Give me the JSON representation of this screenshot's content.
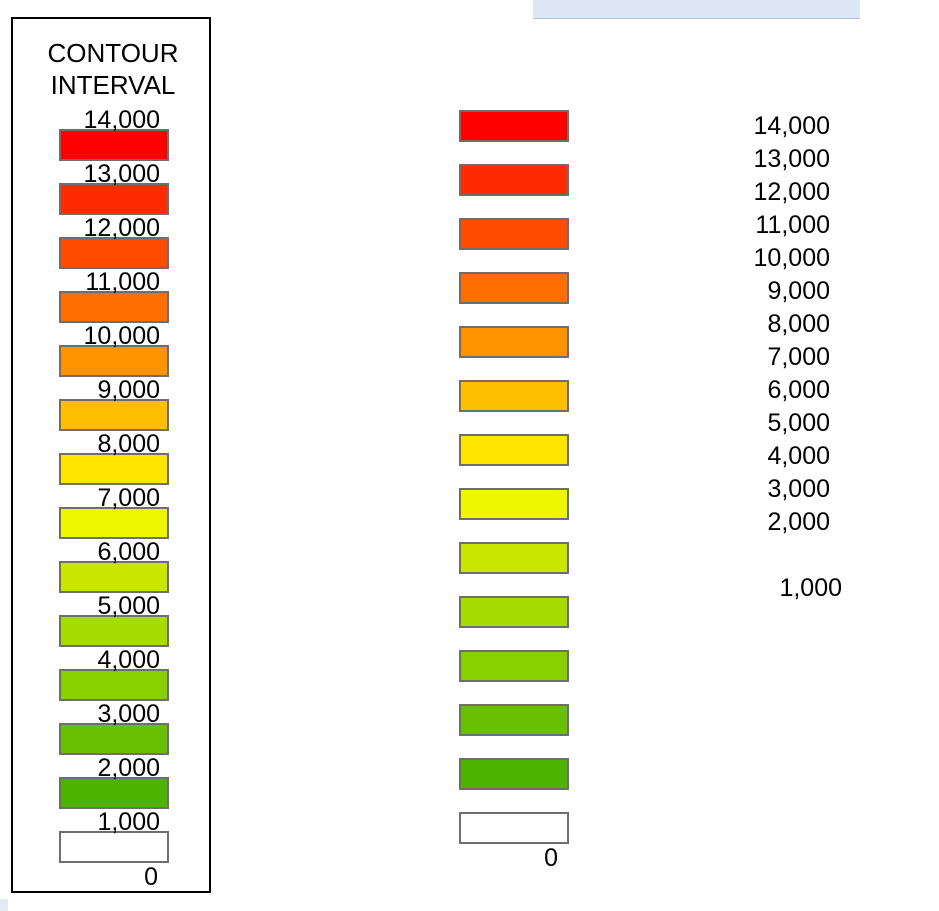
{
  "legend": {
    "title": "CONTOUR\nINTERVAL",
    "zero_label": "0",
    "items": [
      {
        "label": "14,000",
        "color": "#ff0000"
      },
      {
        "label": "13,000",
        "color": "#ff2a00"
      },
      {
        "label": "12,000",
        "color": "#ff4b00"
      },
      {
        "label": "11,000",
        "color": "#ff6e00"
      },
      {
        "label": "10,000",
        "color": "#ff9400"
      },
      {
        "label": "9,000",
        "color": "#ffbf00"
      },
      {
        "label": "8,000",
        "color": "#ffe600"
      },
      {
        "label": "7,000",
        "color": "#eef700"
      },
      {
        "label": "6,000",
        "color": "#c9e600"
      },
      {
        "label": "5,000",
        "color": "#a6dc00"
      },
      {
        "label": "4,000",
        "color": "#88d000"
      },
      {
        "label": "3,000",
        "color": "#68c000"
      },
      {
        "label": "2,000",
        "color": "#4db300"
      },
      {
        "label": "1,000",
        "color": "#ffffff"
      }
    ]
  },
  "middle_swatches": {
    "zero_label": "0",
    "colors": [
      "#ff0000",
      "#ff2a00",
      "#ff4b00",
      "#ff6e00",
      "#ff9400",
      "#ffbf00",
      "#ffe600",
      "#eef700",
      "#c9e600",
      "#a6dc00",
      "#88d000",
      "#68c000",
      "#4db300",
      "#ffffff"
    ]
  },
  "right_labels": [
    "14,000",
    "13,000",
    "12,000",
    "11,000",
    "10,000",
    "9,000",
    "8,000",
    "7,000",
    "6,000",
    "5,000",
    "4,000",
    "3,000",
    "2,000",
    "1,000"
  ]
}
